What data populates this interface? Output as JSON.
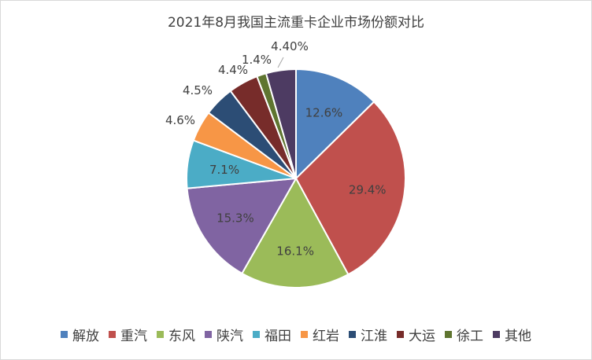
{
  "chart_data": {
    "type": "pie",
    "title": "2021年8月我国主流重卡企业市场份额对比",
    "legend_position": "bottom",
    "categories": [
      "解放",
      "重汽",
      "东风",
      "陕汽",
      "福田",
      "红岩",
      "江淮",
      "大运",
      "徐工",
      "其他"
    ],
    "values": [
      12.6,
      29.4,
      16.1,
      15.3,
      7.1,
      4.6,
      4.5,
      4.4,
      1.4,
      4.4
    ],
    "labels": [
      "12.6%",
      "29.4%",
      "16.1%",
      "15.3%",
      "7.1%",
      "4.6%",
      "4.5%",
      "4.4%",
      "1.4%",
      "4.40%"
    ],
    "colors": [
      "#4f81bd",
      "#c0504d",
      "#9bbb59",
      "#8064a2",
      "#4bacc6",
      "#f79646",
      "#2c4d75",
      "#772c2a",
      "#5f7530",
      "#4d3b62"
    ]
  }
}
